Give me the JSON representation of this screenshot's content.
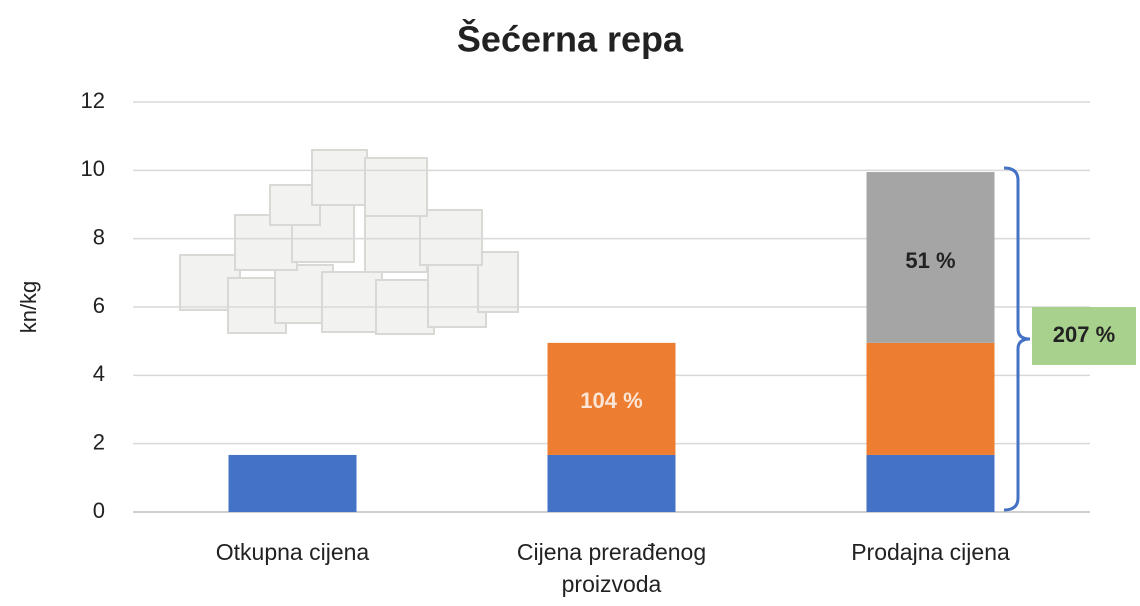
{
  "chart_data": {
    "type": "stacked_bar",
    "title": "Šećerna repa",
    "y_label": "kn/kg",
    "categories": [
      "Otkupna cijena",
      "Cijena prerađenog proizvoda",
      "Prodajna cijena"
    ],
    "series": [
      {
        "color": "#4472c4",
        "values": [
          1.67,
          1.67,
          1.67
        ]
      },
      {
        "color": "#ed7d31",
        "values": [
          null,
          3.28,
          3.28
        ]
      },
      {
        "color": "#a5a5a5",
        "values": [
          null,
          null,
          5.0
        ]
      }
    ],
    "ylim": [
      0,
      12
    ],
    "yticks": [
      0,
      2,
      4,
      6,
      8,
      10,
      12
    ],
    "grid": true,
    "annotations": [
      "104 %",
      "51 %",
      "207 %"
    ]
  }
}
